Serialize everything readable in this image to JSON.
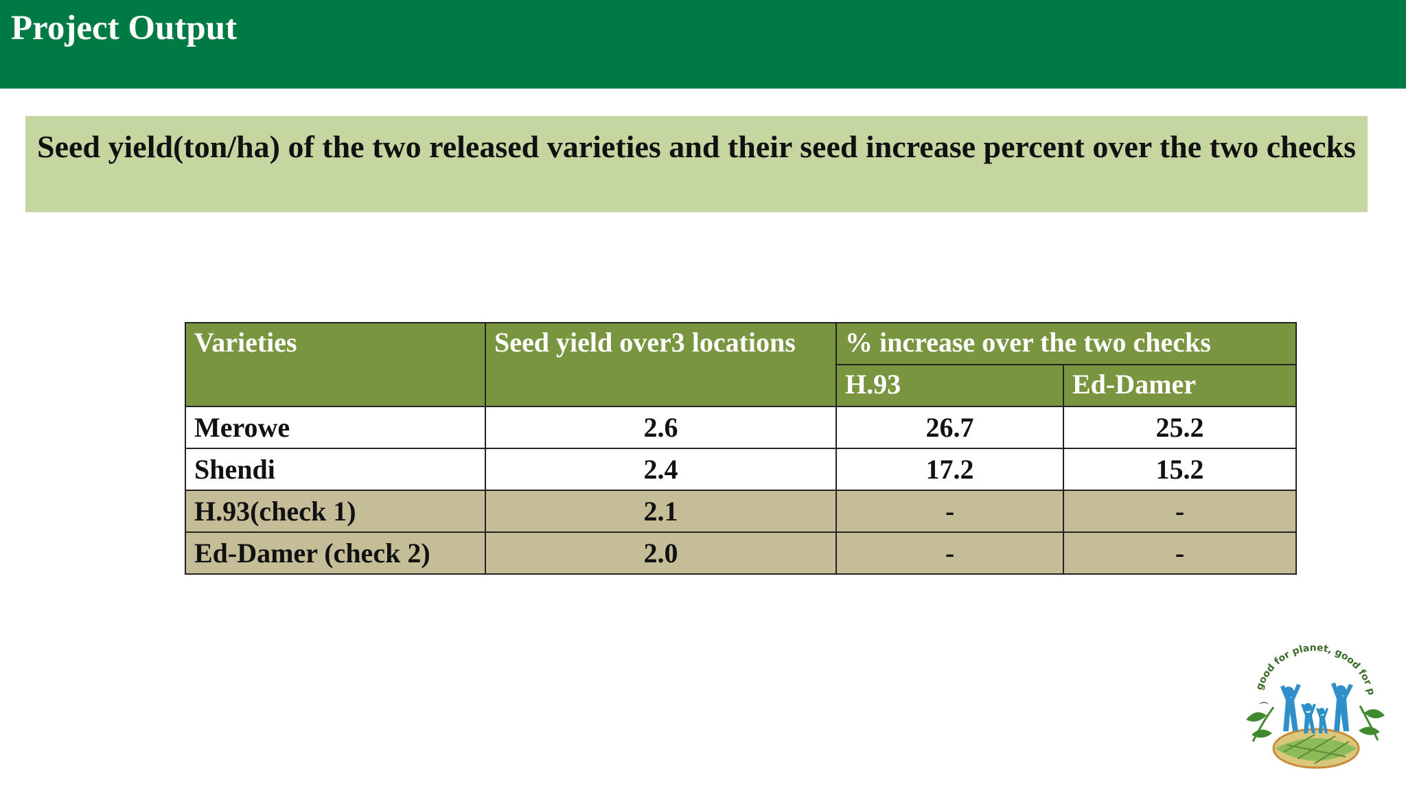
{
  "header": {
    "title": "Project Output",
    "color": "#007a45"
  },
  "subtitle": {
    "text": "Seed yield(ton/ha) of the two released varieties and their seed increase percent over the two checks",
    "color": "#c5d6a0"
  },
  "table": {
    "header_color": "#7a9540",
    "check_row_color": "#c4bd98",
    "columns": {
      "varieties": "Varieties",
      "seed_yield": "Seed yield over3 locations",
      "increase_group": "% increase over the two checks",
      "check1": "H.93",
      "check2": "Ed-Damer"
    },
    "rows": [
      {
        "variety": "Merowe",
        "yield": "2.6",
        "inc_h93": "26.7",
        "inc_eddamer": "25.2"
      },
      {
        "variety": "Shendi",
        "yield": "2.4",
        "inc_h93": "17.2",
        "inc_eddamer": "15.2"
      },
      {
        "variety": "H.93(check 1)",
        "yield": "2.1",
        "inc_h93": "-",
        "inc_eddamer": "-"
      },
      {
        "variety": "Ed-Damer (check 2)",
        "yield": "2.0",
        "inc_h93": "-",
        "inc_eddamer": "-"
      }
    ]
  },
  "logo": {
    "text": "good for planet, good for people",
    "icon": "family-earth-logo-icon"
  }
}
